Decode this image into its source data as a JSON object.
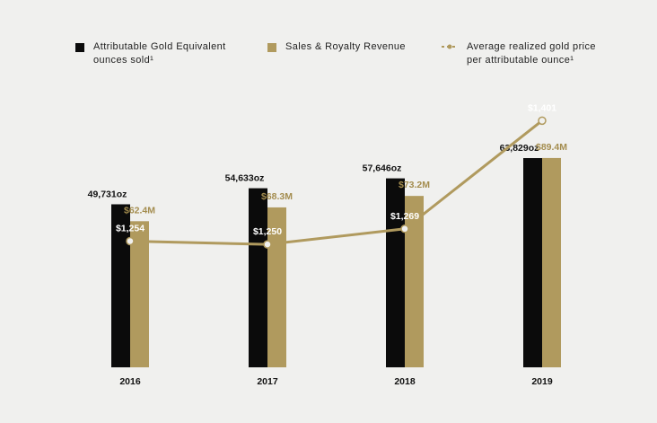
{
  "legend": {
    "ounces_label": "Attributable Gold Equivalent\nounces sold¹",
    "revenue_label": "Sales & Royalty Revenue",
    "price_label": "Average realized gold price\nper attributable ounce¹"
  },
  "colors": {
    "background": "#f0f0ee",
    "ounces": "#0b0b0b",
    "revenue": "#b09a5e",
    "price_line": "#b09a5e",
    "revenue_label": "#a48d4f"
  },
  "chart_data": {
    "type": "bar",
    "categories": [
      "2016",
      "2017",
      "2018",
      "2019"
    ],
    "series": [
      {
        "name": "Attributable Gold Equivalent ounces sold¹",
        "type": "bar",
        "values": [
          49731,
          54633,
          57646,
          63829
        ],
        "labels": [
          "49,731oz",
          "54,633oz",
          "57,646oz",
          "63,829oz"
        ]
      },
      {
        "name": "Sales & Royalty Revenue",
        "type": "bar",
        "values": [
          62.4,
          68.3,
          73.2,
          89.4
        ],
        "labels": [
          "$62.4M",
          "$68.3M",
          "$73.2M",
          "$89.4M"
        ]
      },
      {
        "name": "Average realized gold price per attributable ounce¹",
        "type": "line",
        "values": [
          1254,
          1250,
          1269,
          1401
        ],
        "labels": [
          "$1,254",
          "$1,250",
          "$1,269",
          "$1,401"
        ]
      }
    ],
    "ounces_range": [
      0,
      100000
    ],
    "revenue_range": [
      0,
      140
    ],
    "price_range": [
      1100,
      1500
    ],
    "grid": false,
    "legend_position": "top"
  }
}
